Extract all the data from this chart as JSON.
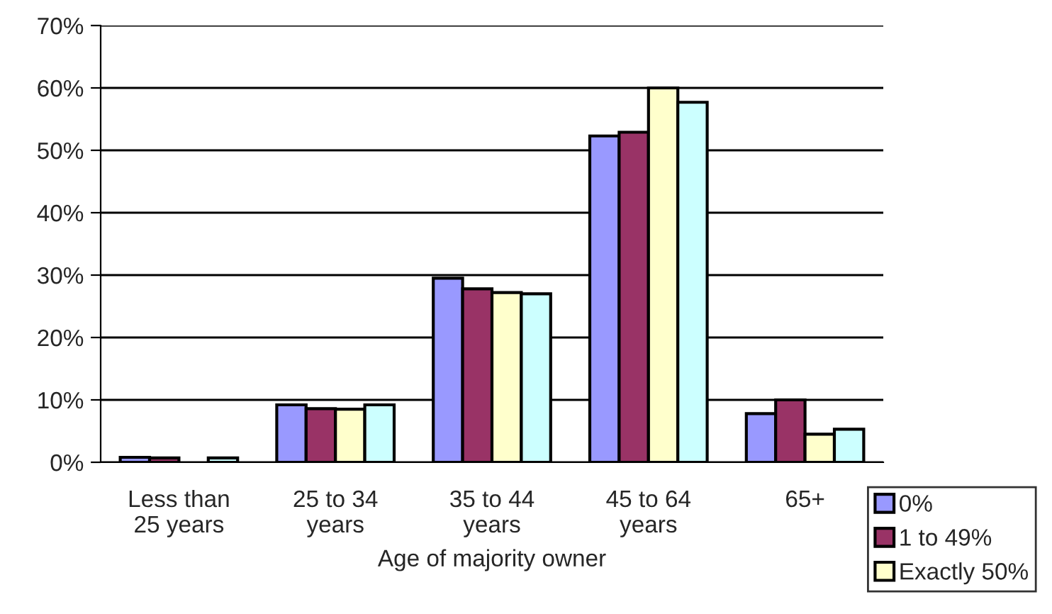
{
  "chart_data": {
    "type": "bar",
    "xlabel": "Age of majority owner",
    "categories": [
      "Less than\n25 years",
      "25 to 34\nyears",
      "35 to 44\nyears",
      "45 to 64\nyears",
      "65+"
    ],
    "series": [
      {
        "name": "0%",
        "color": "#9999ff",
        "values": [
          0.8,
          9.2,
          29.5,
          52.3,
          7.8
        ]
      },
      {
        "name": "1 to 49%",
        "color": "#993366",
        "values": [
          0.7,
          8.6,
          27.8,
          52.9,
          10.0
        ]
      },
      {
        "name": "Exactly 50%",
        "color": "#ffffcc",
        "values": [
          null,
          8.5,
          27.2,
          60.0,
          4.5
        ]
      },
      {
        "color": "#ccffff",
        "values": [
          0.7,
          9.2,
          27.0,
          57.7,
          5.3
        ]
      }
    ],
    "ylim": [
      0,
      70
    ],
    "yticks": [
      {
        "value": 0,
        "label": "0%"
      },
      {
        "value": 10,
        "label": "10%"
      },
      {
        "value": 20,
        "label": "20%"
      },
      {
        "value": 30,
        "label": "30%"
      },
      {
        "value": 40,
        "label": "40%"
      },
      {
        "value": 50,
        "label": "50%"
      },
      {
        "value": 60,
        "label": "60%"
      },
      {
        "value": 70,
        "label": "70%"
      }
    ],
    "grid": "y",
    "legend": "bottom right"
  }
}
